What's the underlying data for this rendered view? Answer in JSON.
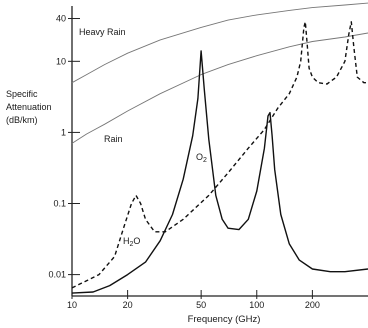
{
  "chart_data": {
    "type": "line",
    "title": "",
    "xlabel": "Frequency (GHz)",
    "ylabel": [
      "Specific",
      "Attenuation",
      "(dB/km)"
    ],
    "x_scale": "log",
    "y_scale": "log",
    "xlim": [
      10,
      400
    ],
    "ylim": [
      0.005,
      60
    ],
    "x_ticks": [
      {
        "value": 10,
        "label": "10"
      },
      {
        "value": 20,
        "label": "20"
      },
      {
        "value": 50,
        "label": "50"
      },
      {
        "value": 100,
        "label": "100"
      },
      {
        "value": 200,
        "label": "200"
      }
    ],
    "y_ticks": [
      {
        "value": 0.01,
        "label": "0.01"
      },
      {
        "value": 0.1,
        "label": "0.1"
      },
      {
        "value": 1,
        "label": "1"
      },
      {
        "value": 10,
        "label": "10"
      },
      {
        "value": 40,
        "label": "40"
      }
    ],
    "grid": false,
    "legend": "none",
    "series": [
      {
        "name": "Heavy Rain",
        "style": "thin-solid",
        "color": "#777777",
        "points": [
          [
            10,
            5
          ],
          [
            12,
            6.5
          ],
          [
            15,
            9
          ],
          [
            20,
            13
          ],
          [
            30,
            20
          ],
          [
            50,
            30
          ],
          [
            70,
            38
          ],
          [
            100,
            45
          ],
          [
            150,
            52
          ],
          [
            200,
            57
          ],
          [
            300,
            62
          ],
          [
            400,
            66
          ]
        ]
      },
      {
        "name": "Rain",
        "style": "thin-solid",
        "color": "#777777",
        "points": [
          [
            10,
            0.7
          ],
          [
            12,
            0.95
          ],
          [
            15,
            1.3
          ],
          [
            20,
            2
          ],
          [
            30,
            3.5
          ],
          [
            50,
            6.5
          ],
          [
            70,
            9
          ],
          [
            100,
            12
          ],
          [
            150,
            16
          ],
          [
            200,
            19
          ],
          [
            300,
            22
          ],
          [
            400,
            25
          ]
        ]
      },
      {
        "name": "O2",
        "style": "solid",
        "color": "#111111",
        "points": [
          [
            10,
            0.0055
          ],
          [
            13,
            0.0057
          ],
          [
            16,
            0.007
          ],
          [
            20,
            0.01
          ],
          [
            25,
            0.015
          ],
          [
            30,
            0.03
          ],
          [
            35,
            0.07
          ],
          [
            40,
            0.22
          ],
          [
            45,
            0.9
          ],
          [
            48,
            3
          ],
          [
            50,
            14
          ],
          [
            52,
            4
          ],
          [
            55,
            0.8
          ],
          [
            60,
            0.13
          ],
          [
            65,
            0.06
          ],
          [
            70,
            0.045
          ],
          [
            80,
            0.043
          ],
          [
            90,
            0.06
          ],
          [
            100,
            0.15
          ],
          [
            110,
            0.6
          ],
          [
            115,
            1.7
          ],
          [
            118,
            1.9
          ],
          [
            121,
            0.9
          ],
          [
            125,
            0.3
          ],
          [
            135,
            0.07
          ],
          [
            150,
            0.027
          ],
          [
            170,
            0.016
          ],
          [
            200,
            0.012
          ],
          [
            250,
            0.011
          ],
          [
            300,
            0.011
          ],
          [
            400,
            0.012
          ]
        ]
      },
      {
        "name": "H2O",
        "style": "dashed",
        "color": "#111111",
        "points": [
          [
            10,
            0.0065
          ],
          [
            14,
            0.01
          ],
          [
            17,
            0.018
          ],
          [
            19,
            0.045
          ],
          [
            21,
            0.1
          ],
          [
            22.2,
            0.13
          ],
          [
            23.5,
            0.1
          ],
          [
            25,
            0.06
          ],
          [
            28,
            0.04
          ],
          [
            32,
            0.04
          ],
          [
            40,
            0.06
          ],
          [
            55,
            0.13
          ],
          [
            70,
            0.27
          ],
          [
            90,
            0.6
          ],
          [
            110,
            1.1
          ],
          [
            130,
            2.2
          ],
          [
            150,
            3.5
          ],
          [
            165,
            6
          ],
          [
            173,
            10
          ],
          [
            180,
            30
          ],
          [
            183,
            36
          ],
          [
            186,
            22
          ],
          [
            192,
            8
          ],
          [
            200,
            6
          ],
          [
            215,
            5
          ],
          [
            240,
            4.8
          ],
          [
            270,
            6
          ],
          [
            300,
            10
          ],
          [
            315,
            24
          ],
          [
            325,
            36
          ],
          [
            335,
            16
          ],
          [
            350,
            6
          ],
          [
            380,
            5
          ],
          [
            400,
            5
          ]
        ]
      }
    ],
    "annotations": [
      {
        "text": "Heavy Rain",
        "series": "Heavy Rain"
      },
      {
        "text": "Rain",
        "series": "Rain"
      },
      {
        "text": "O",
        "sub": "2",
        "series": "O2"
      },
      {
        "text": "H",
        "sub": "2",
        "tail": "O",
        "series": "H2O"
      }
    ]
  }
}
